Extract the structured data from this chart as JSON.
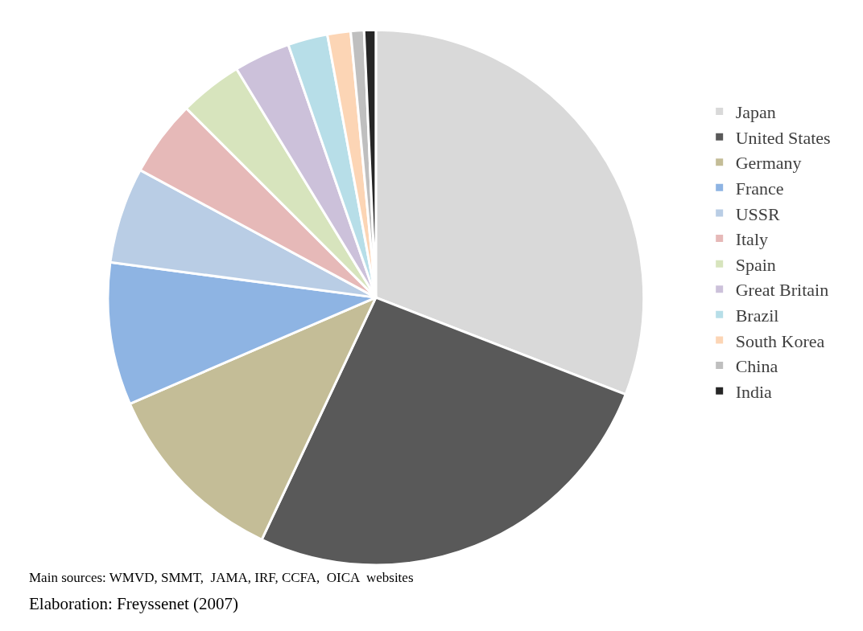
{
  "chart_data": {
    "type": "pie",
    "categories": [
      "Japan",
      "United States",
      "Germany",
      "France",
      "USSR",
      "Italy",
      "Spain",
      "Great Britain",
      "Brazil",
      "South Korea",
      "China",
      "India"
    ],
    "values": [
      30.9,
      26.1,
      11.5,
      8.6,
      5.8,
      4.6,
      3.8,
      3.4,
      2.4,
      1.4,
      0.8,
      0.7
    ],
    "colors": [
      "#d9d9d9",
      "#595959",
      "#c4bd97",
      "#8eb4e3",
      "#b9cde5",
      "#e6b9b8",
      "#d7e4bd",
      "#ccc1da",
      "#b7dee8",
      "#fcd5b5",
      "#bfbfbf",
      "#262626"
    ],
    "legend": "right",
    "annotations": [
      "Main sources: WMVD, SMMT,  JAMA, IRF, CCFA,  OICA  websites",
      "Elaboration: Freyssenet (2007)"
    ]
  }
}
